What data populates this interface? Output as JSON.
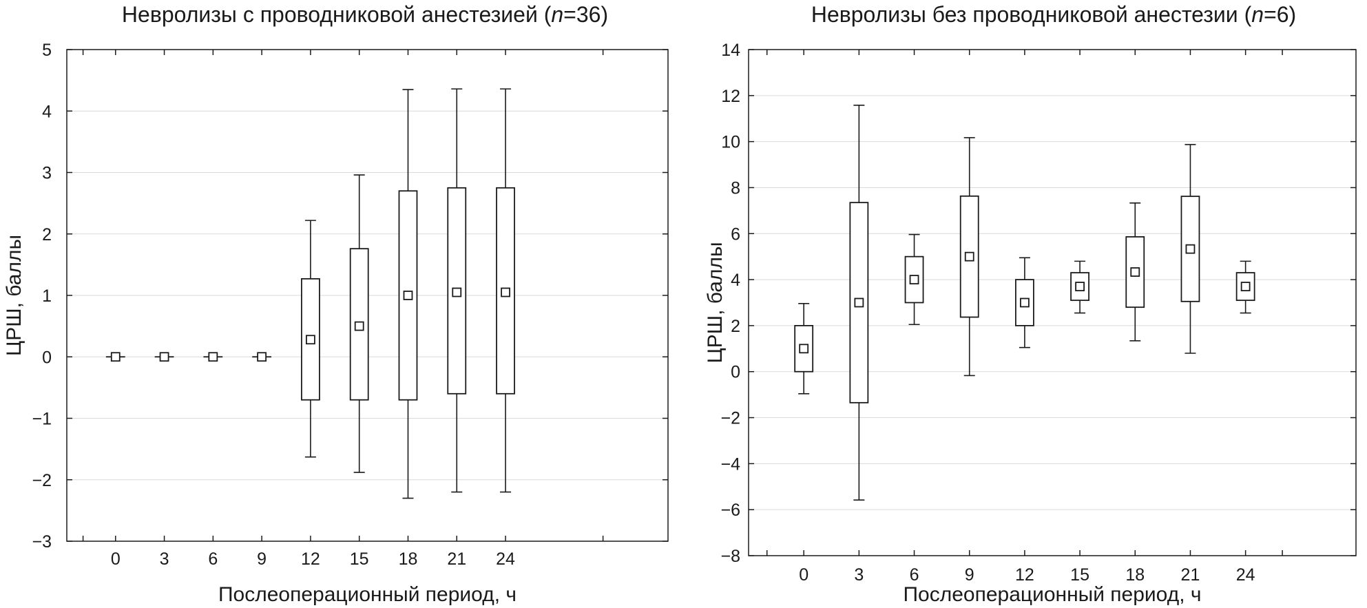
{
  "chart_data": [
    {
      "type": "boxplot",
      "title_main": "Невролизы с проводниковой анестезией (",
      "title_n": "n",
      "title_rest": "=36)",
      "xlabel": "Послеоперационный период, ч",
      "ylabel": "ЦРШ, баллы",
      "ylim": [
        -3,
        5
      ],
      "yticks": [
        -3,
        -2,
        -1,
        0,
        1,
        2,
        3,
        4,
        5
      ],
      "ytick_labels": [
        "−3",
        "−2",
        "−1",
        "0",
        "1",
        "2",
        "3",
        "4",
        "5"
      ],
      "grid": true,
      "xlim": [
        -3,
        34
      ],
      "xticks_minor": [
        -2,
        30
      ],
      "categories": [
        "0",
        "3",
        "6",
        "9",
        "12",
        "15",
        "18",
        "21",
        "24"
      ],
      "x": [
        0,
        3,
        6,
        9,
        12,
        15,
        18,
        21,
        24
      ],
      "mean": [
        0,
        0,
        0,
        0,
        0.28,
        0.5,
        1.0,
        1.05,
        1.05
      ],
      "box_low": [
        0,
        0,
        0,
        0,
        -0.7,
        -0.7,
        -0.7,
        -0.6,
        -0.6
      ],
      "box_high": [
        0,
        0,
        0,
        0,
        1.27,
        1.76,
        2.7,
        2.75,
        2.75
      ],
      "whisker_low": [
        0,
        0,
        0,
        0,
        -1.63,
        -1.88,
        -2.3,
        -2.2,
        -2.2
      ],
      "whisker_high": [
        0,
        0,
        0,
        0,
        2.22,
        2.96,
        4.35,
        4.36,
        4.36
      ]
    },
    {
      "type": "boxplot",
      "title_main": "Невролизы без проводниковой анестезии (",
      "title_n": "n",
      "title_rest": "=6)",
      "xlabel": "Послеоперационный период, ч",
      "ylabel": "ЦРШ, баллы",
      "ylim": [
        -8,
        14
      ],
      "yticks": [
        -8,
        -6,
        -4,
        -2,
        0,
        2,
        4,
        6,
        8,
        10,
        12,
        14
      ],
      "ytick_labels": [
        "−8",
        "−6",
        "−4",
        "−2",
        "0",
        "2",
        "4",
        "6",
        "8",
        "10",
        "12",
        "14"
      ],
      "grid": true,
      "xlim": [
        -3,
        30
      ],
      "xticks_minor": [
        -2,
        26
      ],
      "categories": [
        "0",
        "3",
        "6",
        "9",
        "12",
        "15",
        "18",
        "21",
        "24"
      ],
      "x": [
        0,
        3,
        6,
        9,
        12,
        15,
        18,
        21,
        24
      ],
      "mean": [
        1.0,
        3.0,
        4.0,
        5.0,
        3.0,
        3.7,
        4.33,
        5.33,
        3.7
      ],
      "box_low": [
        0.0,
        -1.35,
        3.0,
        2.37,
        2.0,
        3.1,
        2.8,
        3.05,
        3.1
      ],
      "box_high": [
        2.0,
        7.35,
        5.0,
        7.63,
        4.0,
        4.3,
        5.86,
        7.62,
        4.3
      ],
      "whisker_low": [
        -0.96,
        -5.58,
        2.05,
        -0.17,
        1.05,
        2.55,
        1.34,
        0.8,
        2.55
      ],
      "whisker_high": [
        2.96,
        11.58,
        5.96,
        10.17,
        4.95,
        4.8,
        7.33,
        9.87,
        4.8
      ]
    }
  ]
}
